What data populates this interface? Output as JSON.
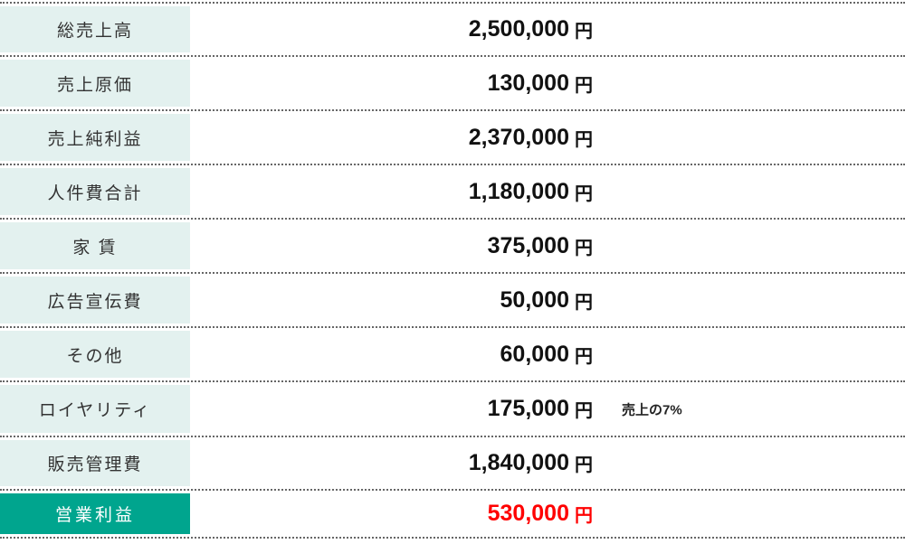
{
  "colors": {
    "label_bg": "#e3f1ef",
    "total_bg": "#00a58e",
    "total_value": "#ff0000",
    "dot_color": "#666666"
  },
  "table": {
    "rows": [
      {
        "label": "総売上高",
        "amount": "2,500,000",
        "unit": "円"
      },
      {
        "label": "売上原価",
        "amount": "130,000",
        "unit": "円"
      },
      {
        "label": "売上純利益",
        "amount": "2,370,000",
        "unit": "円"
      },
      {
        "label": "人件費合計",
        "amount": "1,180,000",
        "unit": "円"
      },
      {
        "label": "家 賃",
        "amount": "375,000",
        "unit": "円"
      },
      {
        "label": "広告宣伝費",
        "amount": "50,000",
        "unit": "円"
      },
      {
        "label": "その他",
        "amount": "60,000",
        "unit": "円"
      },
      {
        "label": "ロイヤリティ",
        "amount": "175,000",
        "unit": "円",
        "note": "売上の7%"
      },
      {
        "label": "販売管理費",
        "amount": "1,840,000",
        "unit": "円"
      },
      {
        "label": "営業利益",
        "amount": "530,000",
        "unit": "円"
      }
    ]
  }
}
